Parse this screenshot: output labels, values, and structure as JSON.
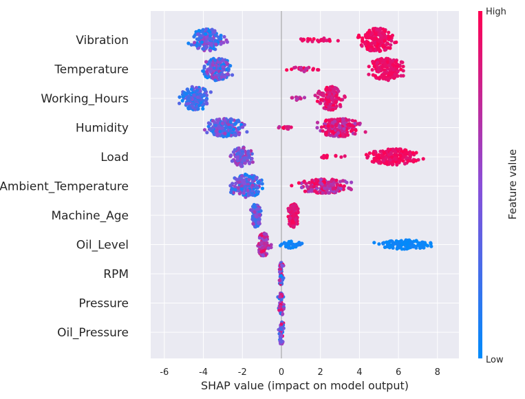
{
  "chart_data": {
    "type": "scatter",
    "subtype": "shap-beeswarm",
    "title": "",
    "xlabel": "SHAP value (impact on model output)",
    "ylabel": "",
    "xlim": [
      -6.7,
      9.1
    ],
    "xticks": [
      -6,
      -4,
      -2,
      0,
      2,
      4,
      6,
      8
    ],
    "grid": true,
    "zero_line": true,
    "colors": {
      "low": "#008bfb",
      "high": "#ff0052",
      "background": "#eaeaf2",
      "grid": "#ffffff",
      "zero_line": "#999999"
    },
    "colorbar": {
      "label": "Feature value",
      "high_label": "High",
      "low_label": "Low"
    },
    "features": [
      {
        "name": "Vibration",
        "clusters": [
          {
            "min": -5.5,
            "max": -2.3,
            "center": -3.8,
            "spread": 0.9,
            "count": 170,
            "cmin": 0.0,
            "cmax": 0.65
          },
          {
            "min": 0.5,
            "max": 3.1,
            "center": 1.9,
            "spread": 1.1,
            "count": 26,
            "cmin": 0.85,
            "cmax": 1.0
          },
          {
            "min": 3.4,
            "max": 6.9,
            "center": 4.9,
            "spread": 0.8,
            "count": 200,
            "cmin": 0.85,
            "cmax": 1.0
          }
        ]
      },
      {
        "name": "Temperature",
        "clusters": [
          {
            "min": -4.8,
            "max": -1.9,
            "center": -3.3,
            "spread": 0.8,
            "count": 160,
            "cmin": 0.0,
            "cmax": 0.65
          },
          {
            "min": 0.2,
            "max": 2.1,
            "center": 1.1,
            "spread": 0.8,
            "count": 22,
            "cmin": 0.7,
            "cmax": 1.0
          },
          {
            "min": 4.0,
            "max": 7.5,
            "center": 5.4,
            "spread": 0.8,
            "count": 190,
            "cmin": 0.85,
            "cmax": 1.0
          }
        ]
      },
      {
        "name": "Working_Hours",
        "clusters": [
          {
            "min": -6.0,
            "max": -3.1,
            "center": -4.4,
            "spread": 0.7,
            "count": 170,
            "cmin": 0.0,
            "cmax": 0.45
          },
          {
            "min": 0.5,
            "max": 1.3,
            "center": 0.9,
            "spread": 0.4,
            "count": 10,
            "cmin": 0.6,
            "cmax": 0.85
          },
          {
            "min": 1.7,
            "max": 4.3,
            "center": 2.5,
            "spread": 0.6,
            "count": 150,
            "cmin": 0.75,
            "cmax": 1.0
          }
        ]
      },
      {
        "name": "Humidity",
        "clusters": [
          {
            "min": -4.8,
            "max": -0.5,
            "center": -2.9,
            "spread": 0.9,
            "count": 190,
            "cmin": 0.0,
            "cmax": 0.65
          },
          {
            "min": -0.3,
            "max": 0.7,
            "center": 0.2,
            "spread": 0.4,
            "count": 10,
            "cmin": 0.7,
            "cmax": 1.0
          },
          {
            "min": 1.3,
            "max": 5.9,
            "center": 3.0,
            "spread": 1.0,
            "count": 200,
            "cmin": 0.6,
            "cmax": 1.0
          }
        ]
      },
      {
        "name": "Load",
        "clusters": [
          {
            "min": -2.8,
            "max": -0.7,
            "center": -2.0,
            "spread": 0.5,
            "count": 100,
            "cmin": 0.2,
            "cmax": 0.7
          },
          {
            "min": 1.5,
            "max": 3.3,
            "center": 2.5,
            "spread": 0.8,
            "count": 14,
            "cmin": 0.85,
            "cmax": 1.0
          },
          {
            "min": 3.0,
            "max": 7.9,
            "center": 5.8,
            "spread": 1.3,
            "count": 190,
            "cmin": 0.85,
            "cmax": 1.0
          }
        ]
      },
      {
        "name": "Ambient_Temperature",
        "clusters": [
          {
            "min": -3.2,
            "max": -0.3,
            "center": -1.8,
            "spread": 0.8,
            "count": 170,
            "cmin": 0.0,
            "cmax": 0.65
          },
          {
            "min": -0.2,
            "max": 5.4,
            "center": 2.2,
            "spread": 1.2,
            "count": 190,
            "cmin": 0.55,
            "cmax": 1.0
          }
        ]
      },
      {
        "name": "Machine_Age",
        "clusters": [
          {
            "min": -1.9,
            "max": -1.0,
            "center": -1.3,
            "spread": 0.25,
            "count": 110,
            "cmin": 0.1,
            "cmax": 0.65
          },
          {
            "min": 0.2,
            "max": 1.3,
            "center": 0.6,
            "spread": 0.25,
            "count": 110,
            "cmin": 0.8,
            "cmax": 1.0
          }
        ]
      },
      {
        "name": "Oil_Level",
        "clusters": [
          {
            "min": -1.3,
            "max": -0.2,
            "center": -0.9,
            "spread": 0.3,
            "count": 100,
            "cmin": 0.5,
            "cmax": 0.95
          },
          {
            "min": -0.2,
            "max": 1.6,
            "center": 0.5,
            "spread": 0.6,
            "count": 30,
            "cmin": 0.0,
            "cmax": 0.1
          },
          {
            "min": 3.4,
            "max": 8.4,
            "center": 6.3,
            "spread": 1.4,
            "count": 110,
            "cmin": 0.0,
            "cmax": 0.08
          }
        ]
      },
      {
        "name": "RPM",
        "clusters": [
          {
            "min": -0.3,
            "max": 0.3,
            "center": 0.0,
            "spread": 0.12,
            "count": 60,
            "cmin": 0.0,
            "cmax": 1.0
          }
        ]
      },
      {
        "name": "Pressure",
        "clusters": [
          {
            "min": -0.3,
            "max": 0.4,
            "center": 0.0,
            "spread": 0.15,
            "count": 60,
            "cmin": 0.0,
            "cmax": 1.0
          }
        ]
      },
      {
        "name": "Oil_Pressure",
        "clusters": [
          {
            "min": -0.3,
            "max": 0.3,
            "center": 0.0,
            "spread": 0.12,
            "count": 55,
            "cmin": 0.0,
            "cmax": 1.0
          }
        ]
      }
    ]
  }
}
